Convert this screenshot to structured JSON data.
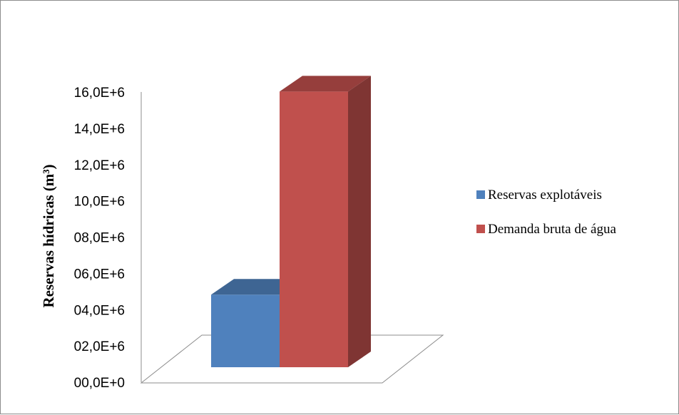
{
  "chart_data": {
    "type": "bar",
    "style": "3d-column",
    "categories": [
      ""
    ],
    "series": [
      {
        "name": "Reservas explotáveis",
        "values": [
          4000000.0
        ],
        "color": "#4f81bd"
      },
      {
        "name": "Demanda bruta de água",
        "values": [
          15200000.0
        ],
        "color": "#c0504d"
      }
    ],
    "ylabel": "Reservas hídricas  (m³)",
    "xlabel": "",
    "ylim": [
      0,
      16000000
    ],
    "yticks": [
      "00,0E+0",
      "02,0E+6",
      "04,0E+6",
      "06,0E+6",
      "08,0E+6",
      "10,0E+6",
      "12,0E+6",
      "14,0E+6",
      "16,0E+6"
    ],
    "grid": false,
    "legend_position": "right"
  }
}
